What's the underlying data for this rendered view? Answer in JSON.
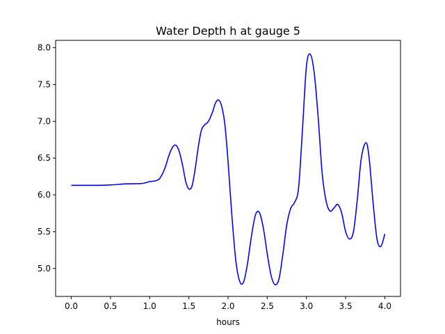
{
  "chart_data": {
    "type": "line",
    "title": "Water Depth h at gauge 5",
    "xlabel": "hours",
    "ylabel": "",
    "xlim": [
      -0.2,
      4.2
    ],
    "ylim": [
      4.62,
      8.1
    ],
    "grid": false,
    "xticks": [
      0.0,
      0.5,
      1.0,
      1.5,
      2.0,
      2.5,
      3.0,
      3.5,
      4.0
    ],
    "xtick_labels": [
      "0.0",
      "0.5",
      "1.0",
      "1.5",
      "2.0",
      "2.5",
      "3.0",
      "3.5",
      "4.0"
    ],
    "yticks": [
      5.0,
      5.5,
      6.0,
      6.5,
      7.0,
      7.5,
      8.0
    ],
    "ytick_labels": [
      "5.0",
      "5.5",
      "6.0",
      "6.5",
      "7.0",
      "7.5",
      "8.0"
    ],
    "series": [
      {
        "color": "#0000ff",
        "x": [
          0.0,
          0.3,
          0.5,
          0.7,
          0.9,
          1.0,
          1.1,
          1.15,
          1.2,
          1.25,
          1.3,
          1.34,
          1.38,
          1.42,
          1.46,
          1.5,
          1.54,
          1.58,
          1.62,
          1.66,
          1.7,
          1.75,
          1.8,
          1.84,
          1.88,
          1.92,
          1.96,
          2.0,
          2.05,
          2.1,
          2.15,
          2.2,
          2.25,
          2.3,
          2.35,
          2.4,
          2.45,
          2.5,
          2.55,
          2.6,
          2.65,
          2.7,
          2.75,
          2.8,
          2.85,
          2.9,
          2.95,
          3.0,
          3.05,
          3.1,
          3.15,
          3.2,
          3.25,
          3.3,
          3.35,
          3.4,
          3.45,
          3.5,
          3.55,
          3.6,
          3.65,
          3.7,
          3.76,
          3.8,
          3.85,
          3.9,
          3.95,
          4.0
        ],
        "y": [
          6.13,
          6.13,
          6.135,
          6.15,
          6.155,
          6.18,
          6.2,
          6.26,
          6.38,
          6.55,
          6.66,
          6.67,
          6.58,
          6.4,
          6.18,
          6.08,
          6.12,
          6.35,
          6.65,
          6.88,
          6.95,
          7.0,
          7.12,
          7.25,
          7.29,
          7.2,
          6.95,
          6.45,
          5.7,
          5.1,
          4.82,
          4.82,
          5.08,
          5.45,
          5.73,
          5.76,
          5.55,
          5.2,
          4.9,
          4.78,
          4.86,
          5.2,
          5.6,
          5.82,
          5.9,
          6.1,
          6.9,
          7.75,
          7.91,
          7.65,
          7.05,
          6.3,
          5.92,
          5.78,
          5.82,
          5.87,
          5.75,
          5.5,
          5.4,
          5.5,
          5.95,
          6.5,
          6.71,
          6.5,
          5.9,
          5.4,
          5.3,
          5.47
        ]
      }
    ]
  }
}
